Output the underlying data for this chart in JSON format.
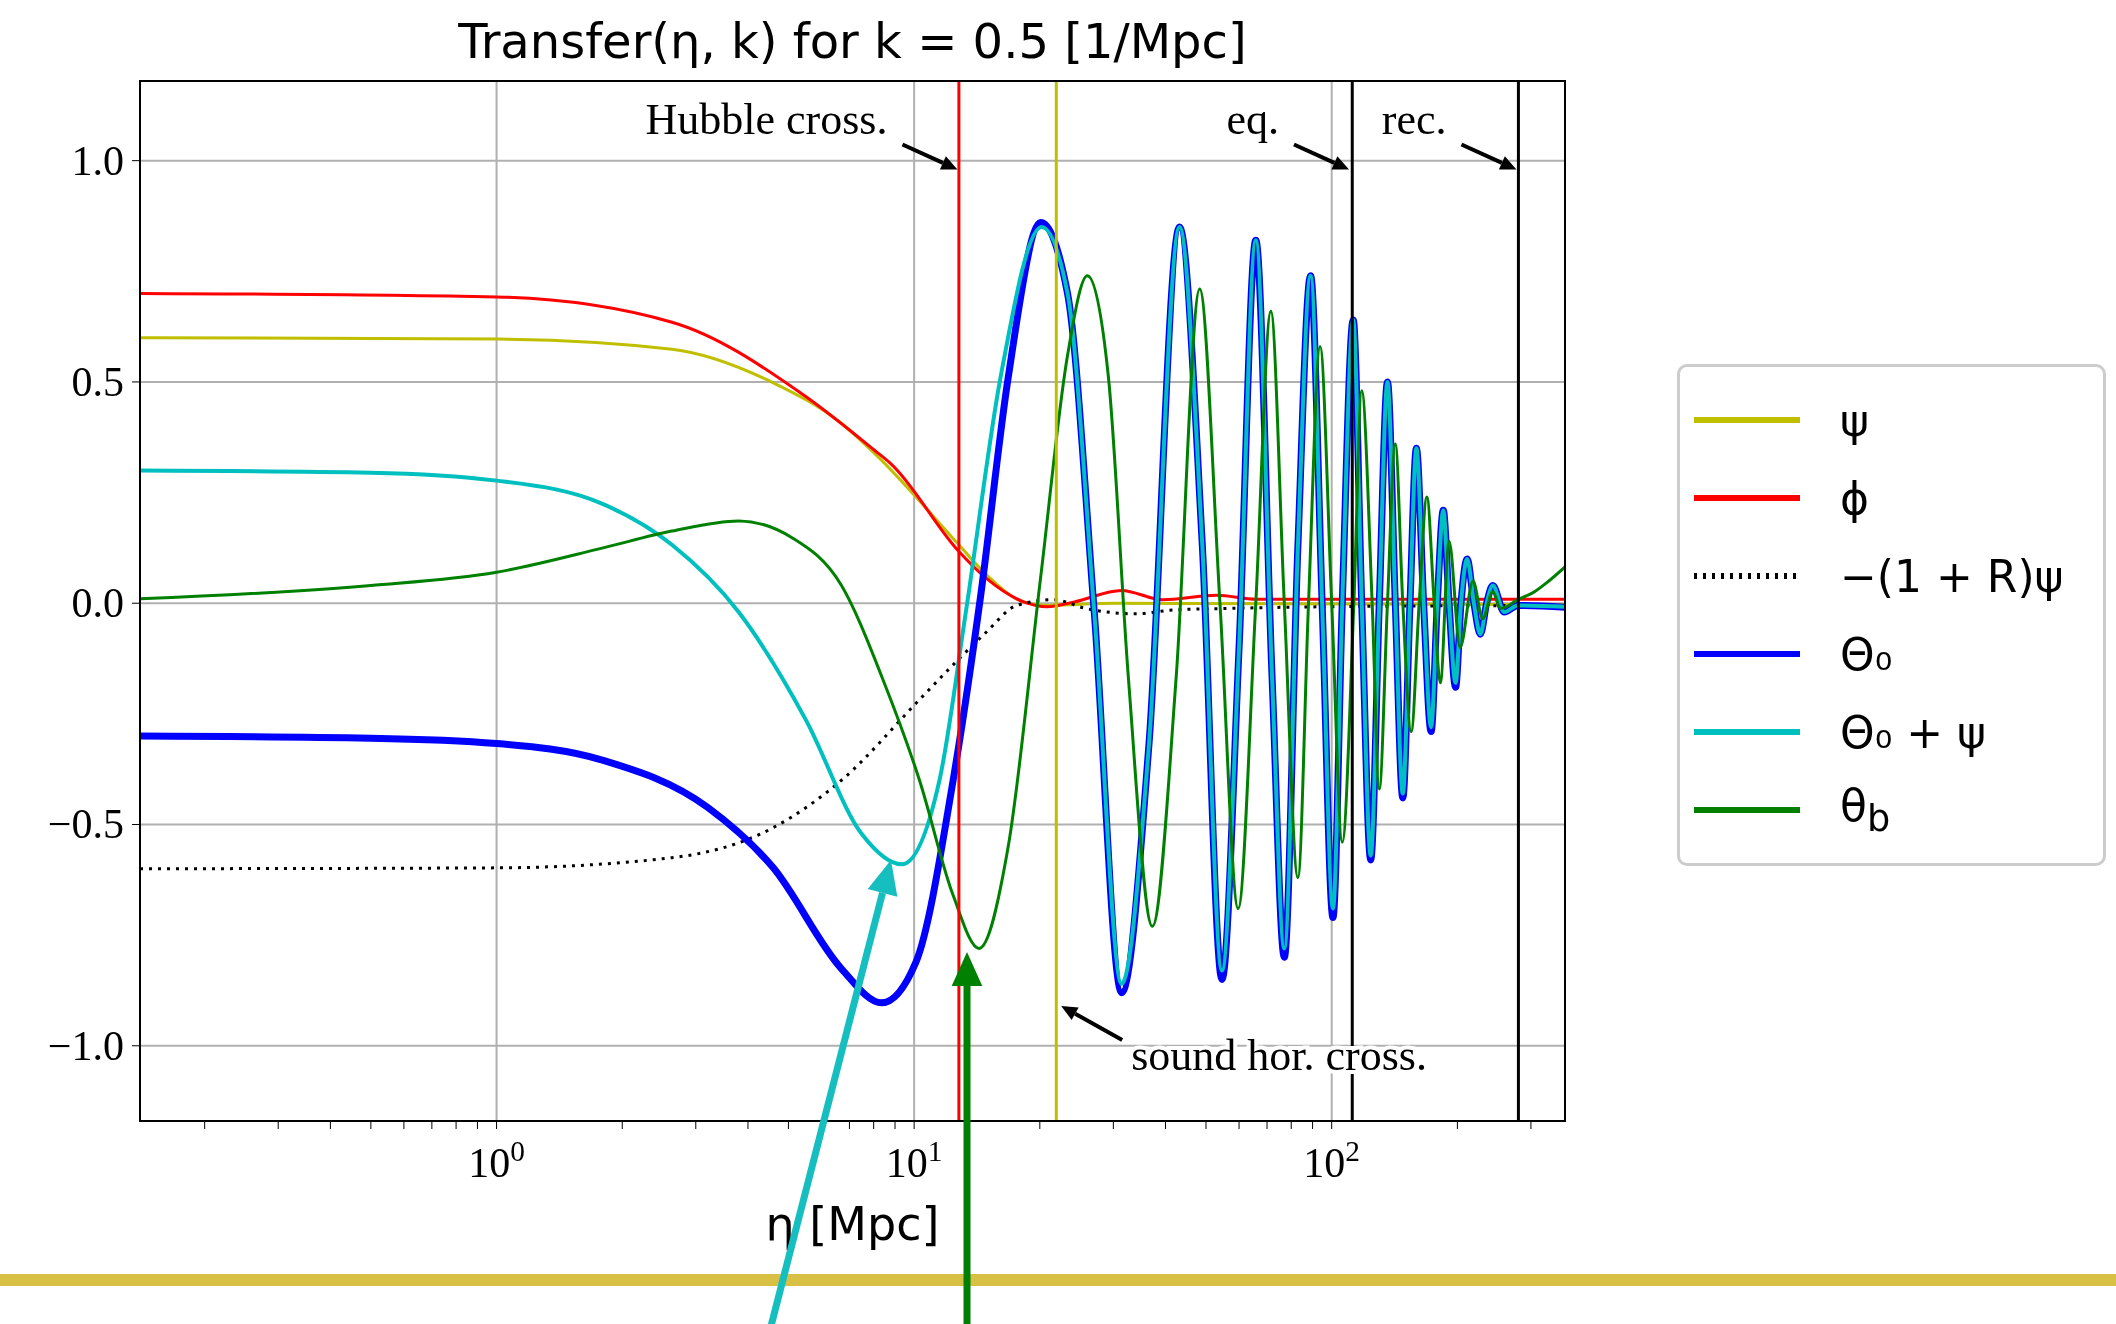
{
  "chart_data": {
    "type": "line",
    "title": "Transfer(η, k)  for  k = 0.5  [1/Mpc]",
    "xlabel": "η [Mpc]",
    "log": "x",
    "grid": true,
    "legend": "right",
    "marker": "none",
    "xlim": [
      0.14,
      362
    ],
    "ylim": [
      -1.17,
      1.18
    ],
    "xticks": [
      {
        "value": 0.2,
        "label": null
      },
      {
        "value": 0.3,
        "label": null
      },
      {
        "value": 0.4,
        "label": null
      },
      {
        "value": 0.5,
        "label": null
      },
      {
        "value": 0.6,
        "label": null
      },
      {
        "value": 0.7,
        "label": null
      },
      {
        "value": 0.8,
        "label": null
      },
      {
        "value": 0.9,
        "label": null
      },
      {
        "value": 1,
        "label": "10$^{0}$"
      },
      {
        "value": 2,
        "label": null
      },
      {
        "value": 3,
        "label": null
      },
      {
        "value": 4,
        "label": null
      },
      {
        "value": 5,
        "label": null
      },
      {
        "value": 6,
        "label": null
      },
      {
        "value": 7,
        "label": null
      },
      {
        "value": 8,
        "label": null
      },
      {
        "value": 9,
        "label": null
      },
      {
        "value": 10,
        "label": "10$^{1}$"
      },
      {
        "value": 20,
        "label": null
      },
      {
        "value": 30,
        "label": null
      },
      {
        "value": 40,
        "label": null
      },
      {
        "value": 50,
        "label": null
      },
      {
        "value": 60,
        "label": null
      },
      {
        "value": 70,
        "label": null
      },
      {
        "value": 80,
        "label": null
      },
      {
        "value": 90,
        "label": null
      },
      {
        "value": 100,
        "label": "10$^{2}$"
      },
      {
        "value": 200,
        "label": null
      },
      {
        "value": 300,
        "label": null
      }
    ],
    "yticks": [
      {
        "value": -1,
        "label": "−1.0"
      },
      {
        "value": -0.5,
        "label": "−0.5"
      },
      {
        "value": 0,
        "label": "0.0"
      },
      {
        "value": 0.5,
        "label": "0.5"
      },
      {
        "value": 1,
        "label": "1.0"
      }
    ],
    "series": [
      {
        "name": "ψ",
        "color": "#bfbf00",
        "x": [
          0.14,
          1,
          2.63,
          4.6,
          6.7,
          8.05,
          12.8,
          14.9,
          18.3,
          20.8,
          30,
          362
        ],
        "values": [
          0.6,
          0.597,
          0.574,
          0.498,
          0.406,
          0.338,
          0.132,
          0.064,
          0.003,
          -0.005,
          0,
          -0.003
        ]
      },
      {
        "name": "ϕ",
        "color": "#ff0000",
        "x": [
          0.14,
          1,
          2.63,
          5.5,
          8.05,
          8.8,
          12.8,
          14.9,
          18.3,
          20.8,
          24.2,
          31.4,
          39.3,
          53,
          66,
          362
        ],
        "values": [
          0.7,
          0.692,
          0.635,
          0.467,
          0.345,
          0.315,
          0.117,
          0.056,
          0.003,
          -0.008,
          0.003,
          0.029,
          0.008,
          0.018,
          0.009,
          0.009
        ]
      },
      {
        "name": "−(1 + R)ψ",
        "color": "#000000",
        "line_style": "dotted",
        "x": [
          0.14,
          1,
          2.63,
          4.6,
          6.7,
          10.3,
          12.8,
          14.9,
          17.6,
          21.6,
          25.8,
          33.9,
          42,
          55,
          96,
          362
        ],
        "values": [
          -0.6,
          -0.598,
          -0.575,
          -0.507,
          -0.4,
          -0.218,
          -0.126,
          -0.065,
          -0.005,
          0.008,
          -0.012,
          -0.024,
          -0.015,
          -0.012,
          -0.008,
          -0.005
        ]
      },
      {
        "name": "Θ₀",
        "color": "#0000ff",
        "x": [
          0.14,
          0.5,
          1,
          1.8,
          3.2,
          4.6,
          6.7,
          8.36,
          10.1,
          12.4,
          14.4,
          16.8,
          20.1,
          23.3,
          27,
          31.4,
          36.5,
          43.2,
          49,
          54.6,
          60,
          65.8,
          72,
          77,
          83,
          89,
          95,
          100.7,
          106,
          112.6,
          118,
          124,
          130,
          136,
          142,
          148,
          154,
          159.5,
          166,
          173,
          179,
          185,
          191,
          198,
          204,
          211,
          219,
          227,
          235,
          243,
          259,
          279,
          362
        ],
        "values": [
          -0.3,
          -0.305,
          -0.317,
          -0.355,
          -0.461,
          -0.598,
          -0.826,
          -0.903,
          -0.811,
          -0.4,
          0.01,
          0.51,
          0.86,
          0.7,
          -0.02,
          -0.88,
          -0.32,
          0.85,
          0.13,
          -0.85,
          -0.1,
          0.82,
          -0.17,
          -0.8,
          0.13,
          0.74,
          -0.02,
          -0.71,
          0,
          0.64,
          0,
          -0.58,
          0,
          0.5,
          0,
          -0.44,
          0,
          0.35,
          0,
          -0.29,
          0,
          0.21,
          0,
          -0.19,
          0,
          0.1,
          0,
          -0.07,
          0,
          0.04,
          -0.02,
          -0.005,
          -0.009
        ]
      },
      {
        "name": "Θ₀ + ψ",
        "color": "#00bfbf",
        "x": [
          0.14,
          0.5,
          1,
          1.8,
          2.63,
          3.8,
          5.5,
          7.5,
          9.35,
          11.5,
          13.3,
          16.1,
          20.2,
          23.3,
          27,
          31.4,
          36.5,
          43.2,
          49,
          54.6,
          60,
          65.8,
          72,
          77,
          83,
          89,
          95,
          100.7,
          106,
          112.6,
          118,
          124,
          130,
          136,
          142,
          148,
          154,
          159.5,
          166,
          173,
          179,
          185,
          191,
          198,
          204,
          211,
          219,
          227,
          235,
          243,
          259,
          279,
          362
        ],
        "values": [
          0.3,
          0.295,
          0.277,
          0.224,
          0.132,
          -0.02,
          -0.263,
          -0.522,
          -0.59,
          -0.4,
          -0.02,
          0.51,
          0.85,
          0.7,
          -0.02,
          -0.86,
          -0.32,
          0.85,
          0.13,
          -0.83,
          -0.1,
          0.82,
          -0.17,
          -0.78,
          0.13,
          0.74,
          -0.02,
          -0.69,
          0,
          0.64,
          0,
          -0.57,
          0,
          0.5,
          0,
          -0.43,
          0,
          0.35,
          0,
          -0.28,
          0,
          0.21,
          0,
          -0.18,
          0,
          0.1,
          0,
          -0.07,
          0,
          0.04,
          -0.02,
          -0.005,
          -0.008
        ]
      },
      {
        "name": "θ$_{b}$",
        "color": "#008000",
        "x": [
          0.14,
          0.5,
          1,
          1.8,
          2.63,
          3.8,
          5.1,
          6.7,
          8.4,
          10.3,
          12.4,
          14.3,
          16.8,
          20.1,
          23.3,
          26,
          29.2,
          32.6,
          37.2,
          42.4,
          48.3,
          54,
          59.7,
          65.8,
          71.5,
          77,
          83,
          88,
          93.8,
          100,
          106,
          113,
          118,
          125,
          130,
          136,
          142,
          148,
          155,
          162,
          169,
          176,
          182,
          191,
          203,
          218,
          230,
          243,
          254,
          279,
          306,
          330,
          362
        ],
        "values": [
          0.01,
          0.04,
          0.07,
          0.125,
          0.163,
          0.186,
          0.148,
          0.04,
          -0.17,
          -0.4,
          -0.66,
          -0.78,
          -0.55,
          0.06,
          0.56,
          0.74,
          0.51,
          -0.17,
          -0.73,
          -0.17,
          0.71,
          0,
          -0.69,
          0,
          0.66,
          0,
          -0.62,
          0,
          0.58,
          0,
          -0.54,
          0,
          0.48,
          0,
          -0.42,
          0,
          0.36,
          0,
          -0.29,
          0,
          0.24,
          0,
          -0.18,
          0.14,
          -0.1,
          0.05,
          -0.035,
          0.026,
          -0.012,
          0.008,
          0.026,
          0.049,
          0.082
        ]
      }
    ],
    "ref_lines": [
      {
        "axis": "x",
        "value": 12.8,
        "color": "#ff0000"
      },
      {
        "axis": "x",
        "value": 21.9,
        "color": "#bfbf00"
      },
      {
        "axis": "x",
        "value": 112,
        "color": "#000000"
      },
      {
        "axis": "x",
        "value": 280,
        "color": "#000000"
      }
    ],
    "annotations": [
      {
        "text": "Hubble cross.",
        "x": 12.7,
        "y": 0.98
      },
      {
        "text": "eq.",
        "x": 110,
        "y": 0.98
      },
      {
        "text": "rec.",
        "x": 277,
        "y": 0.98
      },
      {
        "text": "sound hor. cross.",
        "x": 22.5,
        "y": -0.91
      }
    ]
  }
}
